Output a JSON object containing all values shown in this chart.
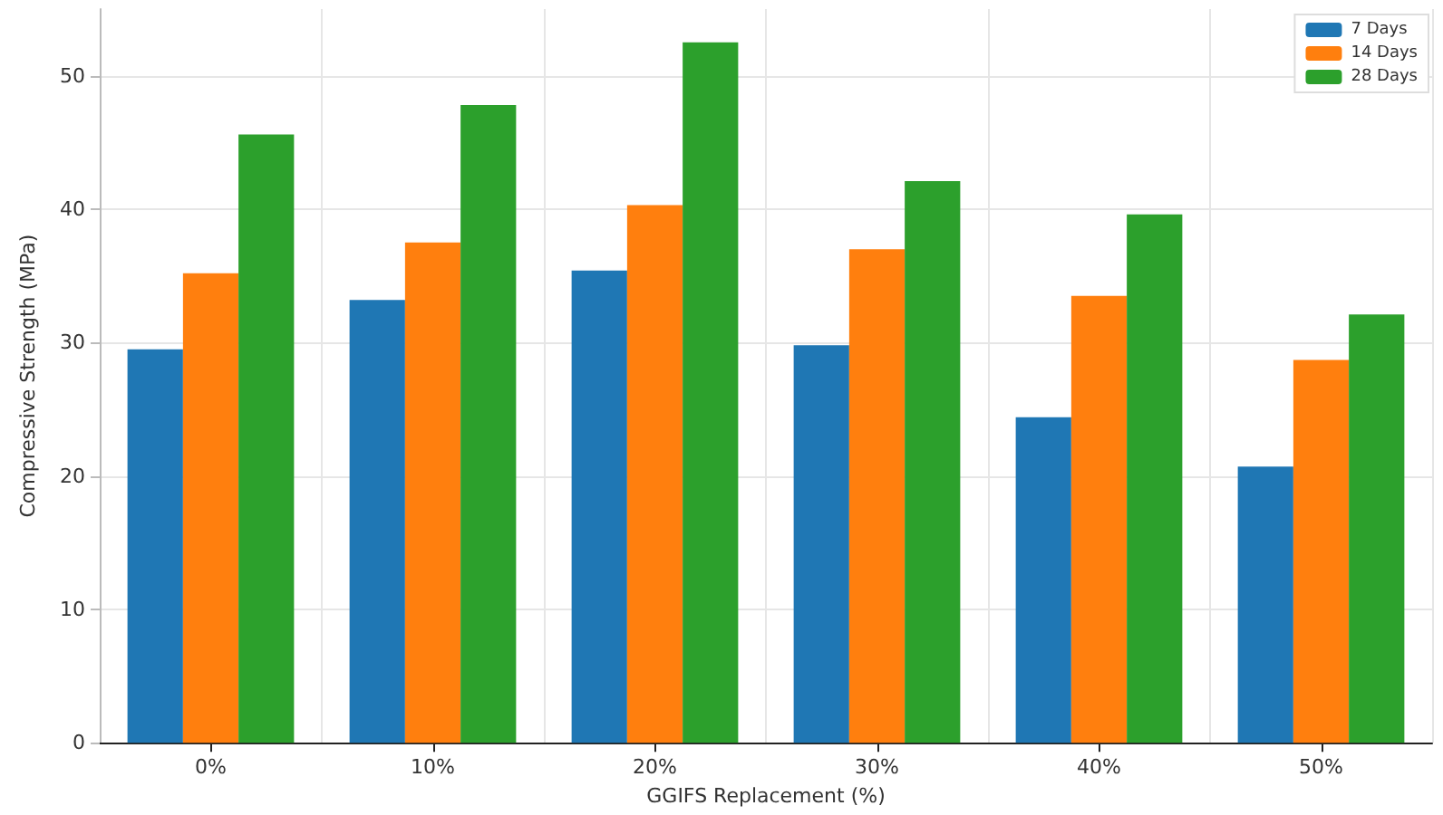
{
  "chart_data": {
    "type": "bar",
    "xlabel": "GGIFS Replacement (%)",
    "ylabel": "Compressive Strength (MPa)",
    "categories": [
      "0%",
      "10%",
      "20%",
      "30%",
      "40%",
      "50%"
    ],
    "series": [
      {
        "name": "7 Days",
        "color": "#1f77b4",
        "values": [
          29.5,
          33.2,
          35.4,
          29.8,
          24.4,
          20.7
        ]
      },
      {
        "name": "14 Days",
        "color": "#ff7f0e",
        "values": [
          35.2,
          37.5,
          40.3,
          37.0,
          33.5,
          28.7
        ]
      },
      {
        "name": "28 Days",
        "color": "#2ca02c",
        "values": [
          45.6,
          47.8,
          52.5,
          42.1,
          39.6,
          32.1
        ]
      }
    ],
    "ylim": [
      0,
      55
    ],
    "yticks": [
      0,
      10,
      20,
      30,
      40,
      50
    ],
    "grid": true,
    "legend": "top right"
  }
}
